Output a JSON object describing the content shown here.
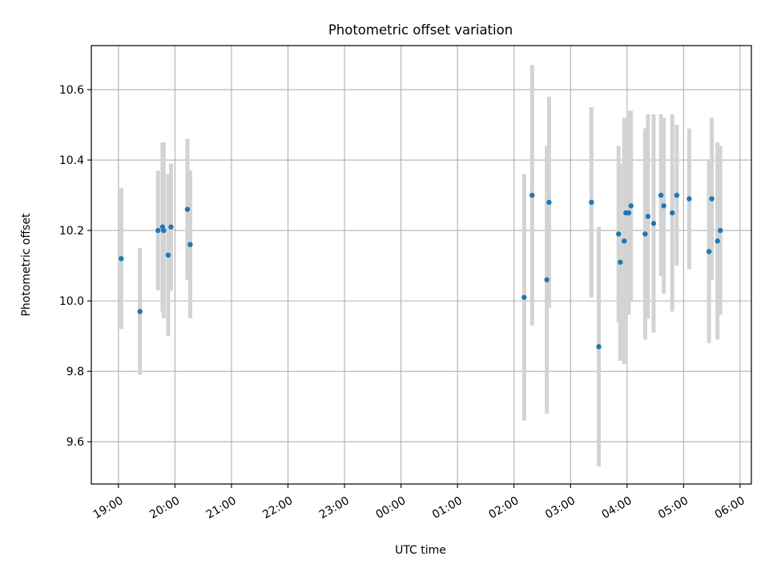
{
  "chart_data": {
    "type": "scatter",
    "title": "Photometric offset variation",
    "xlabel": "UTC time",
    "ylabel": "Photometric offset",
    "x_ticks": [
      "19:00",
      "20:00",
      "21:00",
      "22:00",
      "23:00",
      "00:00",
      "01:00",
      "02:00",
      "03:00",
      "04:00",
      "05:00",
      "06:00"
    ],
    "y_ticks": [
      "9.6",
      "9.8",
      "10.0",
      "10.2",
      "10.4",
      "10.6"
    ],
    "y_tick_values": [
      9.6,
      9.8,
      10.0,
      10.2,
      10.4,
      10.6
    ],
    "x_range_hours": [
      18.52,
      30.2
    ],
    "ylim": [
      9.48,
      10.725
    ],
    "grid": true,
    "x_unit": "hours since 00:00 of first date (values > 24 are after midnight)",
    "points": [
      {
        "t": 19.05,
        "y": 10.12,
        "err": 0.2
      },
      {
        "t": 19.38,
        "y": 9.97,
        "err": 0.18
      },
      {
        "t": 19.7,
        "y": 10.2,
        "err": 0.17
      },
      {
        "t": 19.78,
        "y": 10.21,
        "err": 0.24
      },
      {
        "t": 19.8,
        "y": 10.2,
        "err": 0.25
      },
      {
        "t": 19.88,
        "y": 10.13,
        "err": 0.23
      },
      {
        "t": 19.93,
        "y": 10.21,
        "err": 0.18
      },
      {
        "t": 20.22,
        "y": 10.26,
        "err": 0.2
      },
      {
        "t": 20.27,
        "y": 10.16,
        "err": 0.21
      },
      {
        "t": 26.18,
        "y": 10.01,
        "err": 0.35
      },
      {
        "t": 26.32,
        "y": 10.3,
        "err": 0.37
      },
      {
        "t": 26.58,
        "y": 10.06,
        "err": 0.38
      },
      {
        "t": 26.62,
        "y": 10.28,
        "err": 0.3
      },
      {
        "t": 27.37,
        "y": 10.28,
        "err": 0.27
      },
      {
        "t": 27.5,
        "y": 9.87,
        "err": 0.34
      },
      {
        "t": 27.85,
        "y": 10.19,
        "err": 0.25
      },
      {
        "t": 27.88,
        "y": 10.11,
        "err": 0.28
      },
      {
        "t": 27.95,
        "y": 10.17,
        "err": 0.35
      },
      {
        "t": 27.98,
        "y": 10.25,
        "err": 0.27
      },
      {
        "t": 28.03,
        "y": 10.25,
        "err": 0.29
      },
      {
        "t": 28.07,
        "y": 10.27,
        "err": 0.27
      },
      {
        "t": 28.32,
        "y": 10.19,
        "err": 0.3
      },
      {
        "t": 28.37,
        "y": 10.24,
        "err": 0.29
      },
      {
        "t": 28.47,
        "y": 10.22,
        "err": 0.31
      },
      {
        "t": 28.6,
        "y": 10.3,
        "err": 0.23
      },
      {
        "t": 28.65,
        "y": 10.27,
        "err": 0.25
      },
      {
        "t": 28.8,
        "y": 10.25,
        "err": 0.28
      },
      {
        "t": 28.88,
        "y": 10.3,
        "err": 0.2
      },
      {
        "t": 29.1,
        "y": 10.29,
        "err": 0.2
      },
      {
        "t": 29.45,
        "y": 10.14,
        "err": 0.26
      },
      {
        "t": 29.5,
        "y": 10.29,
        "err": 0.23
      },
      {
        "t": 29.6,
        "y": 10.17,
        "err": 0.28
      },
      {
        "t": 29.65,
        "y": 10.2,
        "err": 0.24
      }
    ],
    "marker_color": "#1f77b4",
    "errorbar_color": "#d3d3d3",
    "grid_color": "#b0b0b0"
  }
}
